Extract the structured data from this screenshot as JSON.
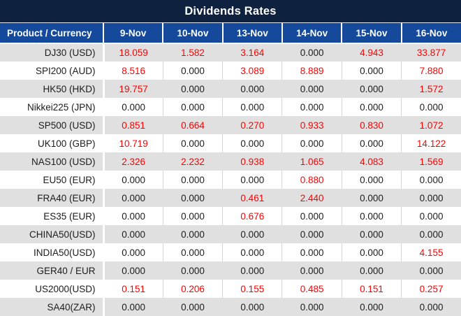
{
  "title": "Dividends Rates",
  "colors": {
    "title_bg": "#0E2240",
    "header_bg": "#14499C",
    "row_alt_bg": "#E0E0E0",
    "value_red": "#FF0000",
    "text_dark": "#1C1C1C"
  },
  "table": {
    "product_header": "Product / Currency",
    "date_columns": [
      "9-Nov",
      "10-Nov",
      "13-Nov",
      "14-Nov",
      "15-Nov",
      "16-Nov"
    ],
    "rows": [
      {
        "product": "DJ30 (USD)",
        "values": [
          "18.059",
          "1.582",
          "3.164",
          "0.000",
          "4.943",
          "33.877"
        ]
      },
      {
        "product": "SPI200 (AUD)",
        "values": [
          "8.516",
          "0.000",
          "3.089",
          "8.889",
          "0.000",
          "7.880"
        ]
      },
      {
        "product": "HK50 (HKD)",
        "values": [
          "19.757",
          "0.000",
          "0.000",
          "0.000",
          "0.000",
          "1.572"
        ]
      },
      {
        "product": "Nikkei225 (JPN)",
        "values": [
          "0.000",
          "0.000",
          "0.000",
          "0.000",
          "0.000",
          "0.000"
        ]
      },
      {
        "product": "SP500 (USD)",
        "values": [
          "0.851",
          "0.664",
          "0.270",
          "0.933",
          "0.830",
          "1.072"
        ]
      },
      {
        "product": "UK100 (GBP)",
        "values": [
          "10.719",
          "0.000",
          "0.000",
          "0.000",
          "0.000",
          "14.122"
        ]
      },
      {
        "product": "NAS100 (USD)",
        "values": [
          "2.326",
          "2.232",
          "0.938",
          "1.065",
          "4.083",
          "1.569"
        ]
      },
      {
        "product": "EU50 (EUR)",
        "values": [
          "0.000",
          "0.000",
          "0.000",
          "0.880",
          "0.000",
          "0.000"
        ]
      },
      {
        "product": "FRA40 (EUR)",
        "values": [
          "0.000",
          "0.000",
          "0.461",
          "2.440",
          "0.000",
          "0.000"
        ]
      },
      {
        "product": "ES35 (EUR)",
        "values": [
          "0.000",
          "0.000",
          "0.676",
          "0.000",
          "0.000",
          "0.000"
        ]
      },
      {
        "product": "CHINA50(USD)",
        "values": [
          "0.000",
          "0.000",
          "0.000",
          "0.000",
          "0.000",
          "0.000"
        ]
      },
      {
        "product": "INDIA50(USD)",
        "values": [
          "0.000",
          "0.000",
          "0.000",
          "0.000",
          "0.000",
          "4.155"
        ]
      },
      {
        "product": "GER40 / EUR",
        "values": [
          "0.000",
          "0.000",
          "0.000",
          "0.000",
          "0.000",
          "0.000"
        ]
      },
      {
        "product": "US2000(USD)",
        "values": [
          "0.151",
          "0.206",
          "0.155",
          "0.485",
          "0.151",
          "0.257"
        ]
      },
      {
        "product": "SA40(ZAR)",
        "values": [
          "0.000",
          "0.000",
          "0.000",
          "0.000",
          "0.000",
          "0.000"
        ]
      }
    ]
  }
}
